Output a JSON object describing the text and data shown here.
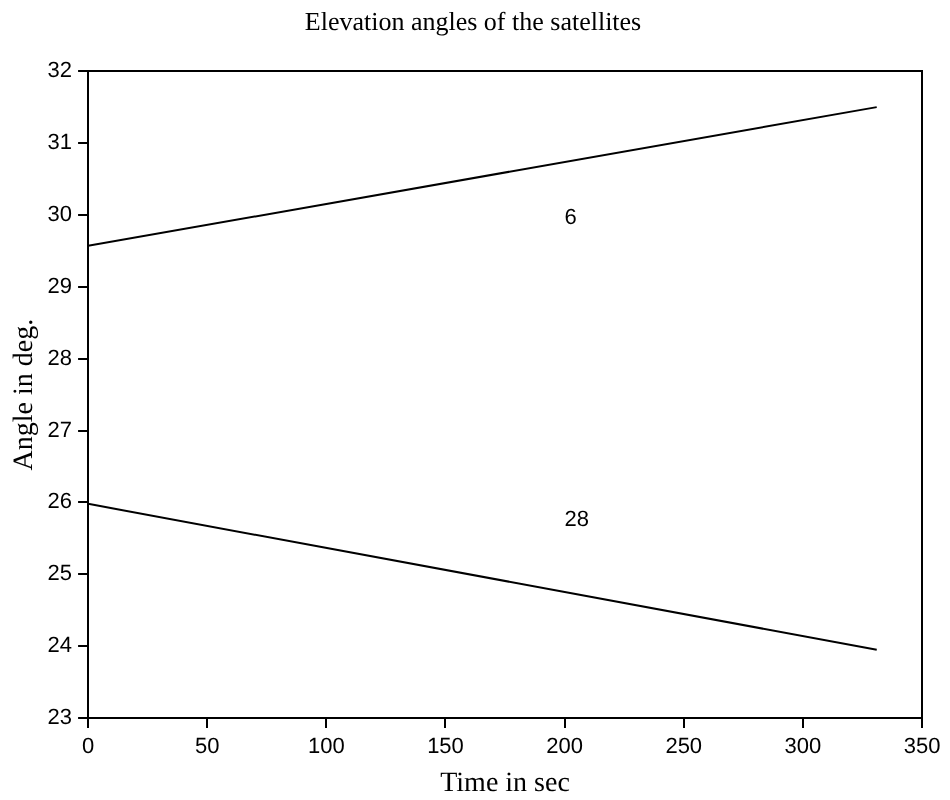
{
  "chart_data": {
    "type": "line",
    "title": "Elevation angles of the satellites",
    "xlabel": "Time in sec",
    "ylabel": "Angle in deg.",
    "x": [
      0,
      331
    ],
    "series": [
      {
        "name": "6",
        "color": "#000000",
        "values": [
          29.57,
          31.5
        ]
      },
      {
        "name": "28",
        "color": "#000000",
        "values": [
          25.98,
          23.95
        ]
      }
    ],
    "xlim": [
      0,
      350
    ],
    "xticks": [
      0,
      50,
      100,
      150,
      200,
      250,
      300,
      350
    ],
    "ylim": [
      23,
      32
    ],
    "yticks": [
      23,
      24,
      25,
      26,
      27,
      28,
      29,
      30,
      31,
      32
    ],
    "grid": false,
    "legend": false,
    "marker": "none",
    "line_style": "solid"
  }
}
